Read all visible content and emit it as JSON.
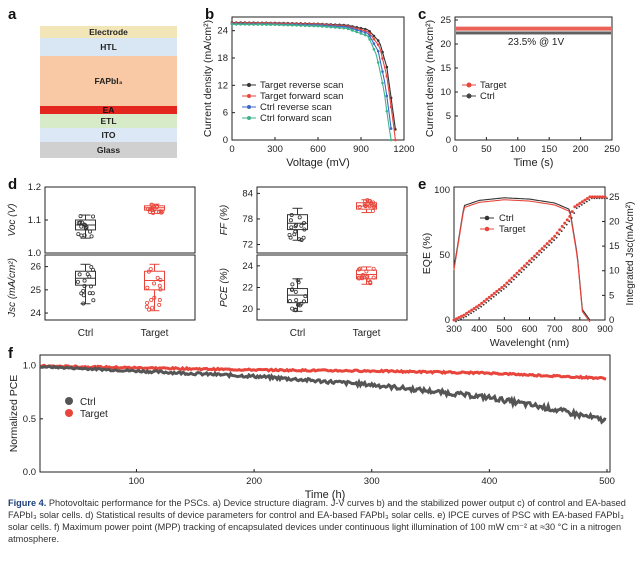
{
  "panels": {
    "a": "a",
    "b": "b",
    "c": "c",
    "d": "d",
    "e": "e",
    "f": "f"
  },
  "stack": {
    "layers": [
      {
        "label": "Electrode",
        "color": "#f2e6b9",
        "top": 26,
        "h": 12
      },
      {
        "label": "HTL",
        "color": "#d9e7f4",
        "top": 38,
        "h": 18
      },
      {
        "label": "FAPbI₃",
        "color": "#f8c9a4",
        "top": 56,
        "h": 50
      },
      {
        "label": "EA",
        "color": "#e3271f",
        "top": 106,
        "h": 8
      },
      {
        "label": "ETL",
        "color": "#d7ebc9",
        "top": 114,
        "h": 14
      },
      {
        "label": "ITO",
        "color": "#dce8f5",
        "top": 128,
        "h": 14
      },
      {
        "label": "Glass",
        "color": "#d0d0d0",
        "top": 142,
        "h": 16
      }
    ]
  },
  "panel_b": {
    "xlabel": "Voltage (mV)",
    "ylabel": "Current density (mA/cm²)",
    "xticks": [
      "0",
      "300",
      "600",
      "900",
      "1200"
    ],
    "yticks": [
      "0",
      "6",
      "12",
      "18",
      "24"
    ],
    "legend": [
      {
        "name": "Target  reverse scan",
        "color": "#333333"
      },
      {
        "name": "Target  forward scan",
        "color": "#e8463c"
      },
      {
        "name": "Ctrl  reverse scan",
        "color": "#3c68c8"
      },
      {
        "name": "Ctrl  forward scan",
        "color": "#3eb389"
      }
    ]
  },
  "panel_c": {
    "xlabel": "Time (s)",
    "ylabel": "Current density (mA/cm²)",
    "xticks": [
      "0",
      "50",
      "100",
      "150",
      "200",
      "250"
    ],
    "yticks": [
      "0",
      "5",
      "10",
      "15",
      "20",
      "25"
    ],
    "annotation": "23.5% @ 1V",
    "legend": [
      {
        "name": "Target",
        "color": "#e8463c"
      },
      {
        "name": "Ctrl",
        "color": "#444444"
      }
    ]
  },
  "panel_d": {
    "categories": [
      "Ctrl",
      "Target"
    ],
    "voc": {
      "label": "Voc (V)",
      "ticks": [
        "1.0",
        "1.1",
        "1.2"
      ]
    },
    "jsc": {
      "label": "Jsc (mA/cm²)",
      "ticks": [
        "24",
        "25",
        "26"
      ]
    },
    "ff": {
      "label": "FF (%)",
      "ticks": [
        "72",
        "78",
        "84"
      ]
    },
    "pce": {
      "label": "PCE (%)",
      "ticks": [
        "20",
        "22",
        "24"
      ]
    }
  },
  "panel_e": {
    "xlabel": "Wavelenght (nm)",
    "ylabel_left": "EQE (%)",
    "ylabel_right": "Integrated Jsc(mA/cm²)",
    "xticks": [
      "300",
      "400",
      "500",
      "600",
      "700",
      "800",
      "900"
    ],
    "yticks_left": [
      "0",
      "50",
      "100"
    ],
    "yticks_right": [
      "0",
      "5",
      "10",
      "15",
      "20",
      "25"
    ],
    "legend": [
      {
        "name": "Ctrl",
        "color": "#333333"
      },
      {
        "name": "Target",
        "color": "#e8463c"
      }
    ]
  },
  "panel_f": {
    "xlabel": "Time (h)",
    "ylabel": "Normalized PCE",
    "xticks": [
      "100",
      "200",
      "300",
      "400",
      "500"
    ],
    "yticks": [
      "0.0",
      "0.5",
      "1.0"
    ],
    "legend": [
      {
        "name": "Ctrl",
        "color": "#555555"
      },
      {
        "name": "Target",
        "color": "#e8463c"
      }
    ]
  },
  "chart_data": [
    {
      "type": "line",
      "title": "",
      "xlabel": "Voltage (mV)",
      "ylabel": "Current density (mA/cm²)",
      "xlim": [
        0,
        1200
      ],
      "ylim": [
        0,
        27
      ],
      "series": [
        {
          "name": "Target  reverse scan",
          "x": [
            0,
            300,
            600,
            800,
            950,
            1030,
            1080,
            1120,
            1150
          ],
          "values": [
            25.8,
            25.7,
            25.5,
            25.2,
            24.2,
            21.5,
            16,
            7,
            0
          ]
        },
        {
          "name": "Target  forward scan",
          "x": [
            0,
            300,
            600,
            800,
            950,
            1030,
            1080,
            1120,
            1140
          ],
          "values": [
            25.7,
            25.6,
            25.4,
            25.0,
            23.8,
            20.5,
            14,
            5,
            0
          ]
        },
        {
          "name": "Ctrl  reverse scan",
          "x": [
            0,
            300,
            600,
            800,
            950,
            1020,
            1070,
            1100,
            1120
          ],
          "values": [
            25.5,
            25.4,
            25.2,
            24.8,
            23.4,
            19.5,
            12,
            5,
            0
          ]
        },
        {
          "name": "Ctrl  forward scan",
          "x": [
            0,
            300,
            600,
            800,
            950,
            1010,
            1060,
            1090,
            1110
          ],
          "values": [
            25.4,
            25.3,
            25.0,
            24.5,
            22.8,
            18.5,
            11,
            4,
            0
          ]
        }
      ]
    },
    {
      "type": "line",
      "xlabel": "Time (s)",
      "ylabel": "Current density (mA/cm²)",
      "xlim": [
        0,
        250
      ],
      "ylim": [
        0,
        25
      ],
      "series": [
        {
          "name": "Target",
          "x": [
            0,
            250
          ],
          "values": [
            23.2,
            23.2
          ]
        },
        {
          "name": "Ctrl",
          "x": [
            0,
            250
          ],
          "values": [
            22.3,
            22.3
          ]
        }
      ]
    },
    {
      "type": "box",
      "categories": [
        "Ctrl",
        "Target"
      ],
      "series": [
        {
          "name": "Voc",
          "values": [
            1.085,
            1.137
          ]
        },
        {
          "name": "Jsc",
          "values": [
            25.5,
            25.4
          ]
        },
        {
          "name": "FF",
          "values": [
            77,
            81
          ]
        },
        {
          "name": "PCE",
          "values": [
            21.3,
            23.2
          ]
        }
      ]
    },
    {
      "type": "line",
      "xlabel": "Wavelenght (nm)",
      "ylabel": "EQE (%)",
      "xlim": [
        300,
        900
      ],
      "ylim": [
        0,
        100
      ],
      "series": [
        {
          "name": "Ctrl",
          "x": [
            300,
            340,
            400,
            500,
            600,
            700,
            760,
            790,
            810,
            840
          ],
          "values": [
            40,
            88,
            92,
            94,
            93,
            90,
            85,
            50,
            8,
            0
          ]
        },
        {
          "name": "Target",
          "x": [
            300,
            340,
            400,
            500,
            600,
            700,
            760,
            780,
            840,
            900
          ],
          "values": [
            0,
            1,
            3,
            7,
            12,
            17,
            21,
            23,
            25,
            25
          ]
        }
      ]
    },
    {
      "type": "scatter",
      "xlabel": "Time (h)",
      "ylabel": "Normalized PCE",
      "xlim": [
        0,
        500
      ],
      "ylim": [
        0,
        1.1
      ],
      "series": [
        {
          "name": "Ctrl",
          "x": [
            0,
            100,
            200,
            300,
            400,
            450,
            500
          ],
          "values": [
            1.0,
            0.95,
            0.9,
            0.82,
            0.7,
            0.6,
            0.48
          ]
        },
        {
          "name": "Target",
          "x": [
            0,
            100,
            200,
            300,
            400,
            500
          ],
          "values": [
            1.0,
            0.98,
            0.96,
            0.95,
            0.93,
            0.88
          ]
        }
      ]
    }
  ],
  "caption": {
    "fig": "Figure 4.",
    "text": " Photovoltaic performance for the PSCs. a) Device structure diagram. J-V curves b) and the stabilized power output c) of control and EA-based FAPbI₃ solar cells. d) Statistical results of device parameters for control and EA-based FAPbI₃ solar cells. e) IPCE curves of PSC with EA-based FAPbI₃ solar cells. f) Maximum power point (MPP) tracking of encapsulated devices under continuous light illumination of 100 mW cm⁻² at ≈30 °C in a nitrogen atmosphere."
  }
}
